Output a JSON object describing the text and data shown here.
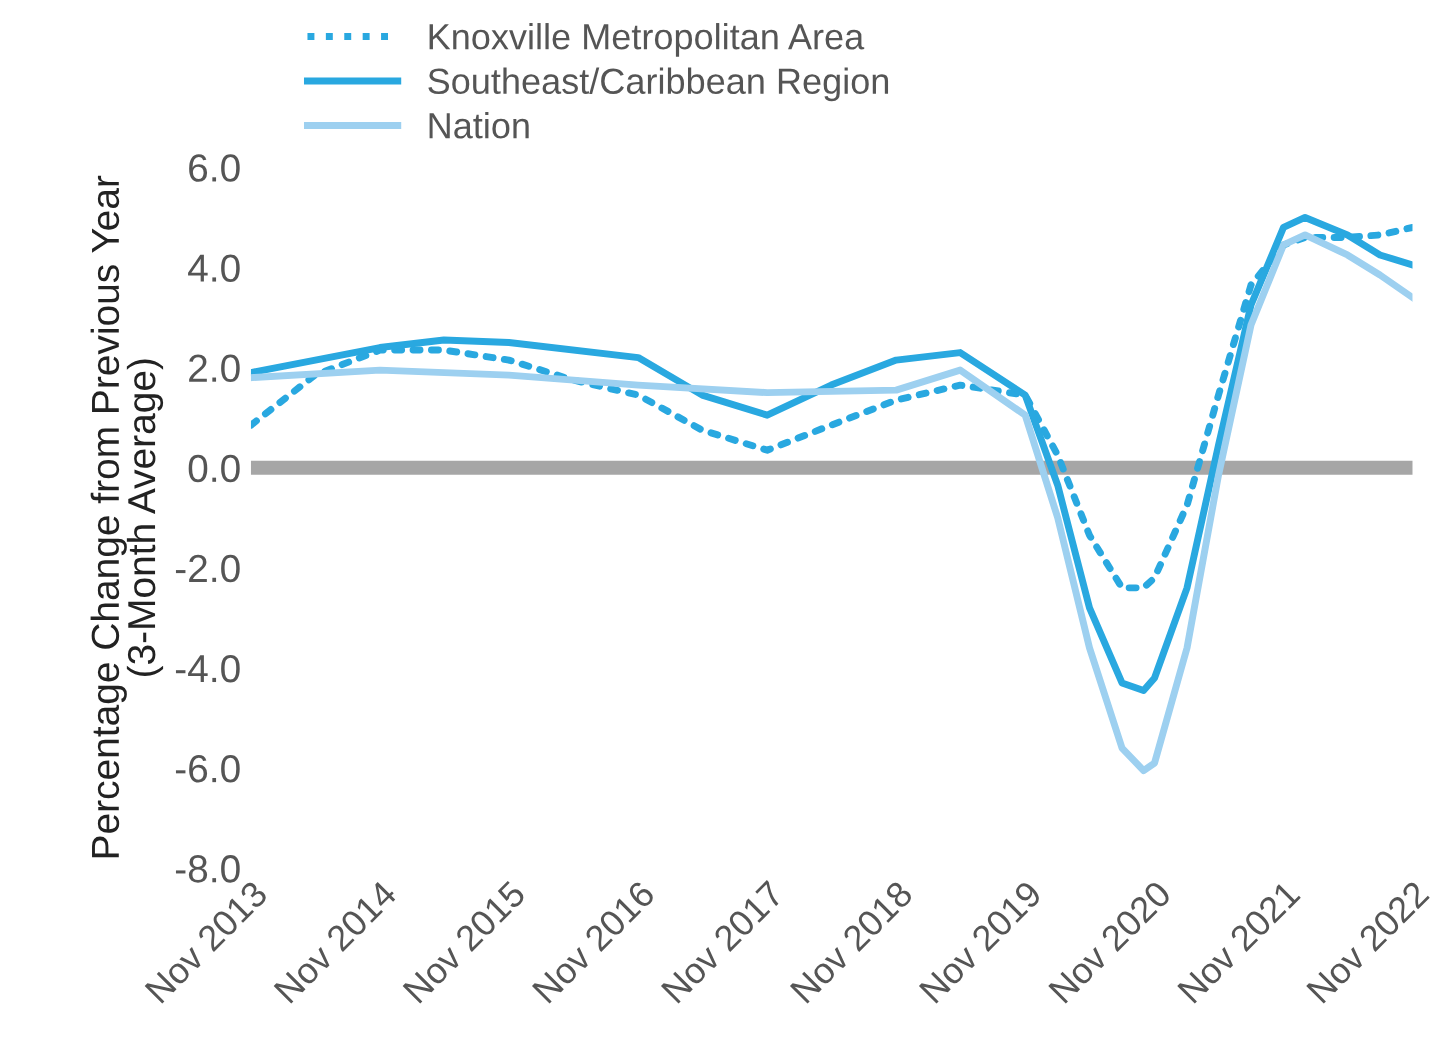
{
  "chart_data": {
    "type": "line",
    "ylabel": "Percentage Change from Previous Year\n(3-Month Average)",
    "xlim": [
      "2013-11",
      "2022-11"
    ],
    "xticks": [
      {
        "value": "2013-11",
        "label": "Nov 2013"
      },
      {
        "value": "2014-11",
        "label": "Nov 2014"
      },
      {
        "value": "2015-11",
        "label": "Nov 2015"
      },
      {
        "value": "2016-11",
        "label": "Nov 2016"
      },
      {
        "value": "2017-11",
        "label": "Nov 2017"
      },
      {
        "value": "2018-11",
        "label": "Nov 2018"
      },
      {
        "value": "2019-11",
        "label": "Nov 2019"
      },
      {
        "value": "2020-11",
        "label": "Nov 2020"
      },
      {
        "value": "2021-11",
        "label": "Nov 2021"
      },
      {
        "value": "2022-11",
        "label": "Nov 2022"
      }
    ],
    "ylim": [
      -8,
      6
    ],
    "yticks": [
      {
        "value": -8,
        "label": "-8.0"
      },
      {
        "value": -6,
        "label": "-6.0"
      },
      {
        "value": -4,
        "label": "-4.0"
      },
      {
        "value": -2,
        "label": "-2.0"
      },
      {
        "value": 0,
        "label": "0.0"
      },
      {
        "value": 2,
        "label": "2.0"
      },
      {
        "value": 4,
        "label": "4.0"
      },
      {
        "value": 6,
        "label": "6.0"
      }
    ],
    "grid": false,
    "legend": "top left",
    "ref_lines": [
      {
        "axis": "y",
        "value": 0,
        "color": "#a6a6a6"
      }
    ],
    "series": [
      {
        "name": "Knoxville Metropolitan Area",
        "color": "#29a8e0",
        "line_style": "dotted",
        "x": [
          "2013-11",
          "2014-05",
          "2014-11",
          "2015-05",
          "2015-11",
          "2016-05",
          "2016-11",
          "2017-05",
          "2017-11",
          "2018-05",
          "2018-11",
          "2019-05",
          "2019-11",
          "2020-02",
          "2020-05",
          "2020-08",
          "2020-10",
          "2020-11",
          "2021-02",
          "2021-05",
          "2021-08",
          "2021-11",
          "2022-01",
          "2022-05",
          "2022-08",
          "2022-11"
        ],
        "values": [
          0.85,
          1.85,
          2.35,
          2.35,
          2.15,
          1.75,
          1.45,
          0.75,
          0.35,
          0.85,
          1.35,
          1.65,
          1.45,
          0.25,
          -1.35,
          -2.4,
          -2.4,
          -2.2,
          -0.75,
          1.45,
          3.65,
          4.45,
          4.6,
          4.6,
          4.65,
          4.8
        ]
      },
      {
        "name": "Southeast/Caribbean Region",
        "color": "#29a8e0",
        "line_style": "solid",
        "x": [
          "2013-11",
          "2014-11",
          "2015-05",
          "2015-11",
          "2016-11",
          "2017-05",
          "2017-11",
          "2018-05",
          "2018-11",
          "2019-05",
          "2019-11",
          "2020-02",
          "2020-05",
          "2020-08",
          "2020-10",
          "2020-11",
          "2021-02",
          "2021-05",
          "2021-08",
          "2021-11",
          "2022-01",
          "2022-05",
          "2022-08",
          "2022-11"
        ],
        "values": [
          1.9,
          2.4,
          2.55,
          2.5,
          2.2,
          1.45,
          1.05,
          1.65,
          2.15,
          2.3,
          1.45,
          -0.35,
          -2.8,
          -4.3,
          -4.45,
          -4.2,
          -2.4,
          0.45,
          3.25,
          4.8,
          5.0,
          4.65,
          4.25,
          4.05
        ]
      },
      {
        "name": "Nation",
        "color": "#9dd0f0",
        "line_style": "solid",
        "x": [
          "2013-11",
          "2014-11",
          "2015-11",
          "2016-11",
          "2017-11",
          "2018-11",
          "2019-05",
          "2019-11",
          "2020-02",
          "2020-05",
          "2020-08",
          "2020-10",
          "2020-11",
          "2021-02",
          "2021-05",
          "2021-08",
          "2021-11",
          "2022-01",
          "2022-05",
          "2022-08",
          "2022-11"
        ],
        "values": [
          1.8,
          1.95,
          1.85,
          1.65,
          1.5,
          1.55,
          1.95,
          1.05,
          -1.0,
          -3.6,
          -5.6,
          -6.05,
          -5.9,
          -3.6,
          -0.15,
          2.85,
          4.45,
          4.65,
          4.25,
          3.85,
          3.4
        ]
      }
    ]
  }
}
